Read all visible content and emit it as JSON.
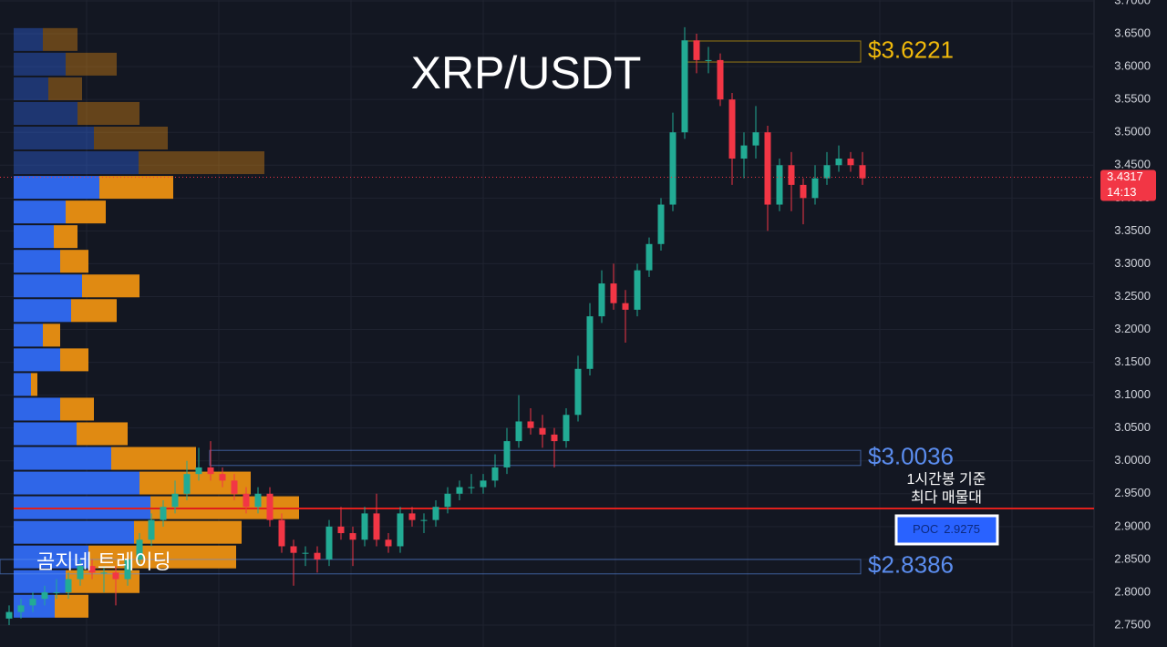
{
  "chart_data": {
    "type": "candlestick",
    "title": "XRP/USDT",
    "watermark": "곰지네 트레이딩",
    "open": [
      2.76,
      2.77,
      2.78,
      2.79,
      2.8,
      2.8,
      2.82,
      2.84,
      2.83,
      2.83,
      2.82,
      2.85,
      2.88,
      2.91,
      2.93,
      2.95,
      2.98,
      2.99,
      2.98,
      2.97,
      2.95,
      2.93,
      2.95,
      2.91,
      2.87,
      2.86,
      2.86,
      2.85,
      2.9,
      2.89,
      2.88,
      2.92,
      2.88,
      2.87,
      2.92,
      2.91,
      2.91,
      2.93,
      2.95,
      2.96,
      2.96,
      2.97,
      2.99,
      3.03,
      3.06,
      3.05,
      3.04,
      3.03,
      3.07,
      3.14,
      3.22,
      3.27,
      3.24,
      3.23,
      3.29,
      3.33,
      3.39,
      3.5,
      3.64,
      3.61,
      3.61,
      3.55,
      3.46,
      3.48,
      3.5,
      3.39,
      3.45,
      3.42,
      3.4,
      3.43,
      3.45,
      3.46,
      3.45
    ],
    "high": [
      2.78,
      2.79,
      2.8,
      2.81,
      2.82,
      2.83,
      2.85,
      2.85,
      2.84,
      2.84,
      2.86,
      2.89,
      2.92,
      2.94,
      2.97,
      3.0,
      3.02,
      3.03,
      2.99,
      2.98,
      2.96,
      2.96,
      2.96,
      2.92,
      2.88,
      2.87,
      2.87,
      2.91,
      2.93,
      2.9,
      2.93,
      2.95,
      2.89,
      2.93,
      2.93,
      2.92,
      2.94,
      2.96,
      2.97,
      2.98,
      2.98,
      3.01,
      3.05,
      3.1,
      3.08,
      3.07,
      3.05,
      3.08,
      3.16,
      3.24,
      3.29,
      3.3,
      3.26,
      3.3,
      3.34,
      3.4,
      3.53,
      3.66,
      3.65,
      3.63,
      3.62,
      3.56,
      3.5,
      3.54,
      3.51,
      3.46,
      3.47,
      3.43,
      3.45,
      3.47,
      3.48,
      3.47,
      3.47
    ],
    "low": [
      2.75,
      2.76,
      2.77,
      2.78,
      2.79,
      2.79,
      2.81,
      2.82,
      2.8,
      2.78,
      2.81,
      2.84,
      2.87,
      2.9,
      2.92,
      2.94,
      2.97,
      2.97,
      2.96,
      2.94,
      2.92,
      2.92,
      2.9,
      2.86,
      2.81,
      2.84,
      2.83,
      2.84,
      2.88,
      2.84,
      2.87,
      2.87,
      2.86,
      2.86,
      2.9,
      2.89,
      2.9,
      2.92,
      2.94,
      2.95,
      2.95,
      2.96,
      2.98,
      3.02,
      3.04,
      3.02,
      2.99,
      3.02,
      3.06,
      3.13,
      3.21,
      3.23,
      3.18,
      3.22,
      3.28,
      3.32,
      3.38,
      3.49,
      3.59,
      3.59,
      3.54,
      3.42,
      3.43,
      3.46,
      3.35,
      3.38,
      3.38,
      3.36,
      3.39,
      3.42,
      3.44,
      3.44,
      3.42
    ],
    "close": [
      2.77,
      2.78,
      2.79,
      2.8,
      2.8,
      2.82,
      2.84,
      2.83,
      2.83,
      2.82,
      2.85,
      2.88,
      2.91,
      2.93,
      2.95,
      2.98,
      2.99,
      2.98,
      2.97,
      2.95,
      2.93,
      2.95,
      2.91,
      2.87,
      2.86,
      2.86,
      2.85,
      2.9,
      2.89,
      2.88,
      2.92,
      2.88,
      2.87,
      2.92,
      2.91,
      2.91,
      2.93,
      2.95,
      2.96,
      2.96,
      2.97,
      2.99,
      3.03,
      3.06,
      3.05,
      3.04,
      3.03,
      3.07,
      3.14,
      3.22,
      3.27,
      3.24,
      3.23,
      3.29,
      3.33,
      3.39,
      3.5,
      3.64,
      3.61,
      3.61,
      3.55,
      3.46,
      3.48,
      3.5,
      3.39,
      3.45,
      3.42,
      3.4,
      3.43,
      3.45,
      3.46,
      3.45,
      3.43
    ],
    "colors": {
      "up": "#22ab94",
      "down": "#f23645",
      "profile_up": "#2f66e8",
      "profile_down": "#e08a12",
      "poc": "#e0201c"
    },
    "ylim": [
      2.75,
      3.7
    ],
    "yticks": [
      {
        "value": 2.75,
        "label": "2.7500"
      },
      {
        "value": 2.8,
        "label": "2.8000"
      },
      {
        "value": 2.85,
        "label": "2.8500"
      },
      {
        "value": 2.9,
        "label": "2.9000"
      },
      {
        "value": 2.95,
        "label": "2.9500"
      },
      {
        "value": 3.0,
        "label": "3.0000"
      },
      {
        "value": 3.05,
        "label": "3.0500"
      },
      {
        "value": 3.1,
        "label": "3.1000"
      },
      {
        "value": 3.15,
        "label": "3.1500"
      },
      {
        "value": 3.2,
        "label": "3.2000"
      },
      {
        "value": 3.25,
        "label": "3.2500"
      },
      {
        "value": 3.3,
        "label": "3.3000"
      },
      {
        "value": 3.35,
        "label": "3.3500"
      },
      {
        "value": 3.4,
        "label": "3.4000"
      },
      {
        "value": 3.45,
        "label": "3.4500"
      },
      {
        "value": 3.5,
        "label": "3.5000"
      },
      {
        "value": 3.55,
        "label": "3.5500"
      },
      {
        "value": 3.6,
        "label": "3.6000"
      },
      {
        "value": 3.65,
        "label": "3.6500"
      },
      {
        "value": 3.7,
        "label": "3.7000"
      }
    ],
    "grid": true,
    "last_price": {
      "value": 3.4317,
      "time": "14:13"
    },
    "zones": [
      {
        "label": "$3.6221",
        "low": 3.607,
        "high": 3.639,
        "color": "#f0b90b"
      },
      {
        "label": "$3.0036",
        "low": 2.993,
        "high": 3.016,
        "color": "#5b8def"
      },
      {
        "label": "$2.8386",
        "low": 2.828,
        "high": 2.85,
        "color": "#5b8def"
      }
    ],
    "poc": {
      "value": 2.9275,
      "label": "POC",
      "caption": [
        "1시간봉 기준",
        "최다 매물대"
      ]
    },
    "volume_profile": {
      "bins": [
        3.66,
        3.6225,
        3.585,
        3.5475,
        3.51,
        3.4725,
        3.435,
        3.3975,
        3.36,
        3.3225,
        3.285,
        3.2475,
        3.21,
        3.1725,
        3.135,
        3.0975,
        3.06,
        3.0225,
        2.985,
        2.9475,
        2.91,
        2.8725,
        2.835,
        2.7975,
        2.76
      ],
      "up": [
        32,
        57,
        38,
        70,
        88,
        137,
        94,
        57,
        44,
        51,
        75,
        63,
        32,
        51,
        19,
        51,
        69,
        107,
        138,
        150,
        132,
        82,
        57,
        45
      ],
      "down": [
        38,
        56,
        37,
        68,
        81,
        138,
        81,
        44,
        26,
        31,
        63,
        50,
        19,
        31,
        7,
        37,
        56,
        93,
        122,
        163,
        118,
        162,
        81,
        37
      ]
    }
  }
}
